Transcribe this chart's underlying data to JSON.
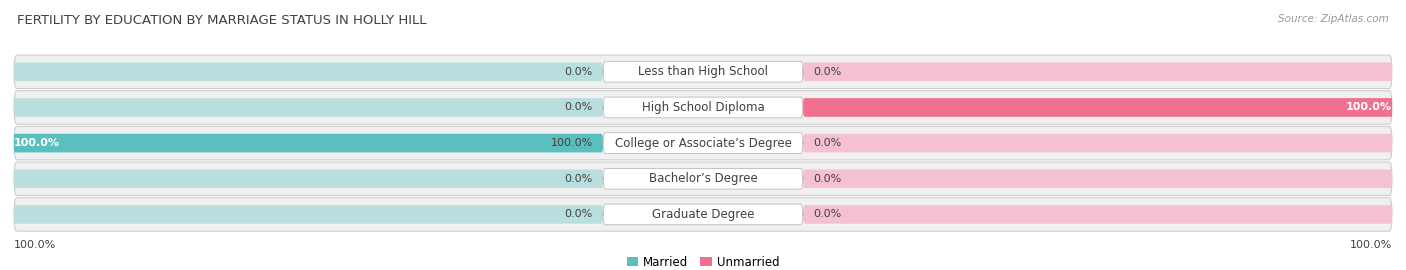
{
  "title": "FERTILITY BY EDUCATION BY MARRIAGE STATUS IN HOLLY HILL",
  "source": "Source: ZipAtlas.com",
  "categories": [
    "Less than High School",
    "High School Diploma",
    "College or Associate’s Degree",
    "Bachelor’s Degree",
    "Graduate Degree"
  ],
  "married_values": [
    0.0,
    0.0,
    100.0,
    0.0,
    0.0
  ],
  "unmarried_values": [
    0.0,
    100.0,
    0.0,
    0.0,
    0.0
  ],
  "married_color": "#5bbfbf",
  "unmarried_color": "#f07090",
  "married_light_color": "#b8dede",
  "unmarried_light_color": "#f5c0d0",
  "row_bg_color": "#f0f0f0",
  "row_border_color": "#c8c8c8",
  "label_color": "#404040",
  "title_color": "#404040",
  "value_fontsize": 8.0,
  "label_fontsize": 8.5,
  "title_fontsize": 9.5,
  "legend_fontsize": 8.5,
  "bottom_left_label": "100.0%",
  "bottom_right_label": "100.0%"
}
